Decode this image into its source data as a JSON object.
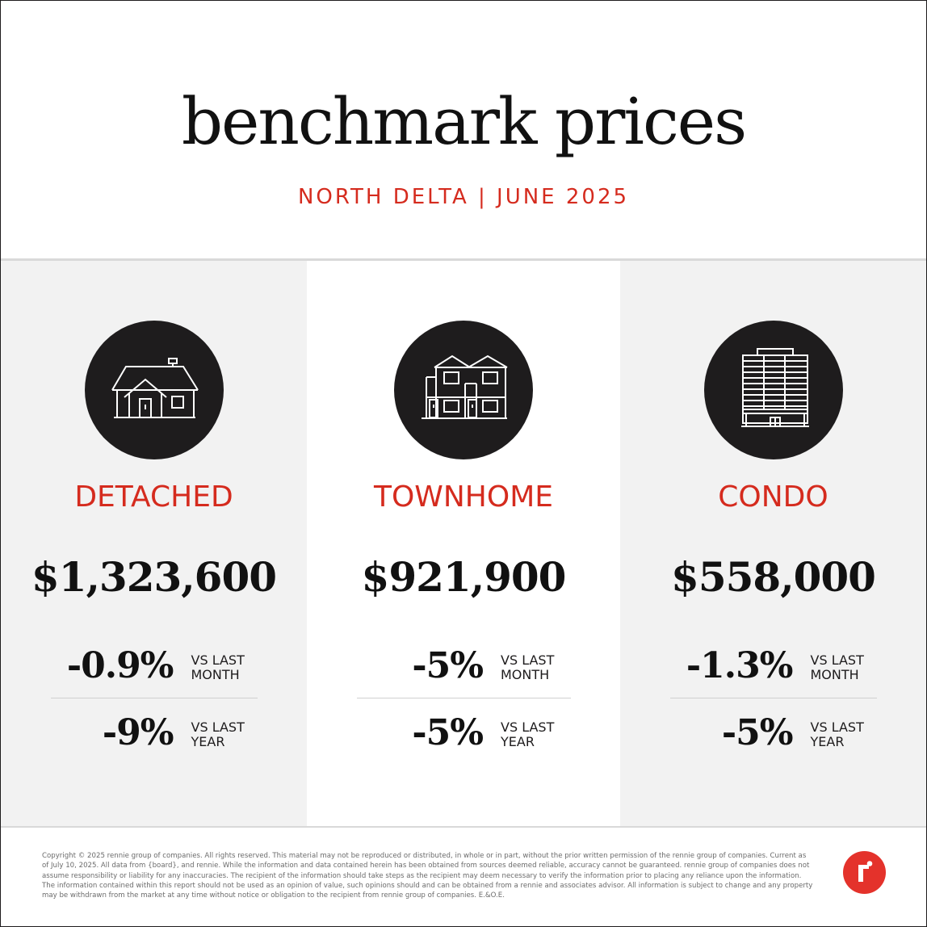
{
  "header": {
    "title": "benchmark prices",
    "subtitle": "NORTH DELTA | JUNE 2025"
  },
  "colors": {
    "accent": "#d52b1e",
    "dark": "#1e1c1d",
    "panel_gray": "#f2f2f2",
    "logo": "#e4322b"
  },
  "categories": [
    {
      "icon": "house-icon",
      "label": "DETACHED",
      "price": "$1,323,600",
      "vs_month": {
        "value": "-0.9%",
        "label_line1": "VS LAST",
        "label_line2": "MONTH"
      },
      "vs_year": {
        "value": "-9%",
        "label_line1": "VS LAST",
        "label_line2": "YEAR"
      }
    },
    {
      "icon": "townhome-icon",
      "label": "TOWNHOME",
      "price": "$921,900",
      "vs_month": {
        "value": "-5%",
        "label_line1": "VS LAST",
        "label_line2": "MONTH"
      },
      "vs_year": {
        "value": "-5%",
        "label_line1": "VS LAST",
        "label_line2": "YEAR"
      }
    },
    {
      "icon": "condo-building-icon",
      "label": "CONDO",
      "price": "$558,000",
      "vs_month": {
        "value": "-1.3%",
        "label_line1": "VS LAST",
        "label_line2": "MONTH"
      },
      "vs_year": {
        "value": "-5%",
        "label_line1": "VS LAST",
        "label_line2": "YEAR"
      }
    }
  ],
  "footer": {
    "disclaimer": "Copyright © 2025 rennie group of companies. All rights reserved. This material may not be reproduced or distributed, in whole or in part, without the prior written permission of the rennie group of companies. Current as of July 10, 2025. All data from {board}, and rennie. While the information and data contained herein has been obtained from sources deemed reliable, accuracy cannot be guaranteed. rennie group of companies does not assume responsibility or liability for any inaccuracies. The recipient of the information should take steps as the recipient may deem necessary to verify the information prior to placing any reliance upon the information. The information contained within this report should not be used as an opinion of value, such opinions should and can be obtained from a rennie and associates advisor. All information is subject to change and any property may be withdrawn from the market at any time without notice or obligation to the recipient from rennie group of companies. E.&O.E.",
    "logo": "rennie-logo-icon"
  }
}
